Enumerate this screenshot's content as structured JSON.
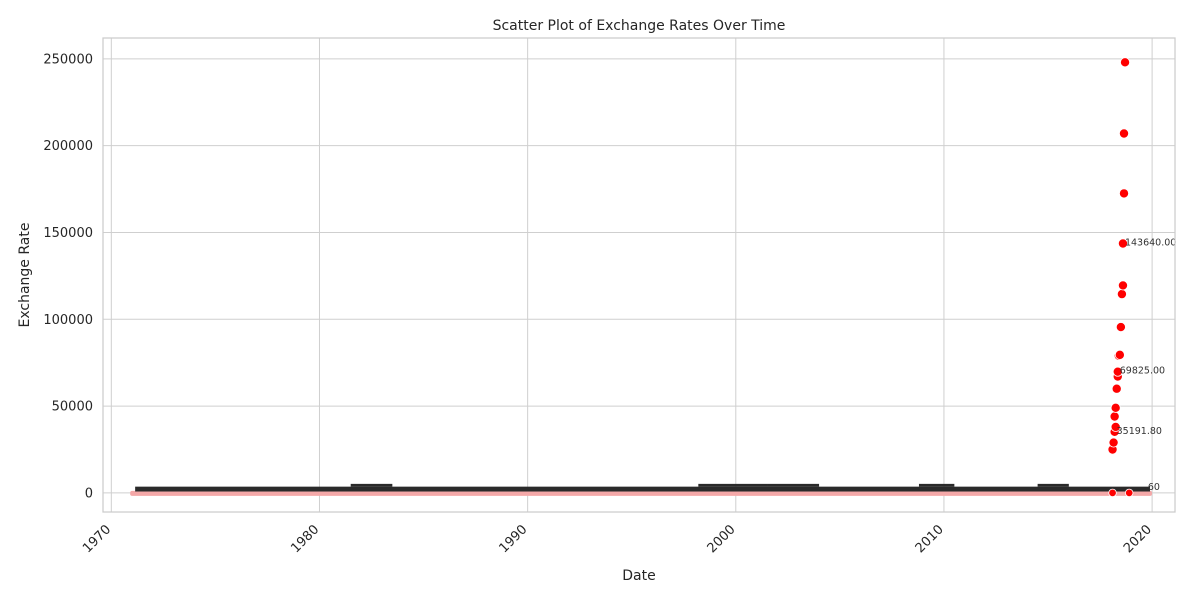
{
  "chart_data": {
    "type": "scatter",
    "title": "Scatter Plot of Exchange Rates Over Time",
    "xlabel": "Date",
    "ylabel": "Exchange Rate",
    "xlim": [
      1969.6,
      2021.1
    ],
    "ylim": [
      -11000,
      262000
    ],
    "x_ticks": [
      1970,
      1980,
      1990,
      2000,
      2010,
      2020
    ],
    "x_tick_labels": [
      "1970",
      "1980",
      "1990",
      "2000",
      "2010",
      "2020"
    ],
    "x_tick_rotation": 45,
    "y_ticks": [
      0,
      50000,
      100000,
      150000,
      200000,
      250000
    ],
    "y_tick_labels": [
      "0",
      "50000",
      "100000",
      "150000",
      "200000",
      "250000"
    ],
    "grid": true,
    "colors": {
      "marker": "#ff0000",
      "low_marker": "#f4a8a8",
      "label_band": "#2a2a2a",
      "background": "#ffffff",
      "grid": "#cfcfcf",
      "frame": "#cccccc"
    },
    "baseline_band": {
      "description_x_range": [
        1971.0,
        2019.9
      ],
      "y_range": [
        0,
        3500
      ],
      "label_color": "#2a2a2a"
    },
    "points": [
      {
        "x": 2018.1,
        "y": 25000
      },
      {
        "x": 2018.15,
        "y": 29000
      },
      {
        "x": 2018.2,
        "y": 35191.8
      },
      {
        "x": 2018.25,
        "y": 38000
      },
      {
        "x": 2018.2,
        "y": 44000
      },
      {
        "x": 2018.25,
        "y": 49000
      },
      {
        "x": 2018.3,
        "y": 60000
      },
      {
        "x": 2018.35,
        "y": 67000
      },
      {
        "x": 2018.35,
        "y": 69825
      },
      {
        "x": 2018.4,
        "y": 79000
      },
      {
        "x": 2018.45,
        "y": 79500
      },
      {
        "x": 2018.5,
        "y": 95500
      },
      {
        "x": 2018.55,
        "y": 114500
      },
      {
        "x": 2018.6,
        "y": 119500
      },
      {
        "x": 2018.6,
        "y": 143640
      },
      {
        "x": 2018.65,
        "y": 172500
      },
      {
        "x": 2018.65,
        "y": 207000
      },
      {
        "x": 2018.7,
        "y": 248000
      },
      {
        "x": 2018.1,
        "y": 0
      },
      {
        "x": 2018.9,
        "y": 0
      }
    ],
    "annotations": [
      {
        "x": 2018.6,
        "y": 143640,
        "text": "143640.00"
      },
      {
        "x": 2018.35,
        "y": 69825,
        "text": "69825.00"
      },
      {
        "x": 2018.2,
        "y": 35191.8,
        "text": "35191.80"
      },
      {
        "x": 2019.7,
        "y": 2800,
        "text": "60"
      }
    ]
  }
}
